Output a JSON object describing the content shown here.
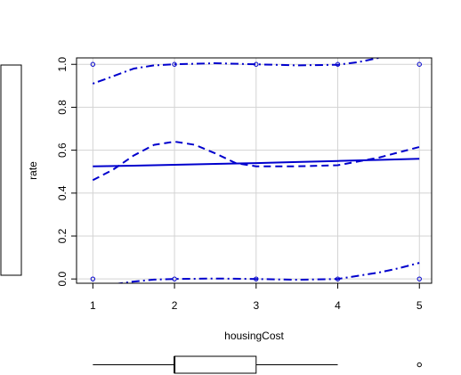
{
  "chart_data": {
    "type": "line",
    "title": "",
    "xlabel": "housingCost",
    "ylabel": "rate",
    "xlim": [
      0.8,
      5.15
    ],
    "ylim": [
      -0.02,
      1.03
    ],
    "x_ticks": [
      1,
      2,
      3,
      4,
      5
    ],
    "y_ticks": [
      0.0,
      0.2,
      0.4,
      0.6,
      0.8,
      1.0
    ],
    "x_tick_labels": [
      "1",
      "2",
      "3",
      "4",
      "5"
    ],
    "y_tick_labels": [
      "0.0",
      "0.2",
      "0.4",
      "0.6",
      "0.8",
      "1.0"
    ],
    "grid": true,
    "colors": {
      "series": "#0000cd",
      "grid": "#d3d3d3",
      "box": "#000000"
    },
    "series": [
      {
        "style": "solid",
        "x": [
          1,
          1.5,
          2,
          2.5,
          3,
          3.5,
          4,
          4.5,
          5
        ],
        "y": [
          0.525,
          0.528,
          0.532,
          0.536,
          0.54,
          0.545,
          0.55,
          0.555,
          0.56
        ]
      },
      {
        "style": "dashed",
        "x": [
          1,
          1.25,
          1.5,
          1.75,
          2,
          2.25,
          2.5,
          2.75,
          3,
          3.5,
          4,
          4.5,
          5
        ],
        "y": [
          0.46,
          0.51,
          0.575,
          0.625,
          0.64,
          0.625,
          0.585,
          0.54,
          0.525,
          0.525,
          0.53,
          0.565,
          0.615
        ]
      },
      {
        "style": "dotdash",
        "x": [
          1,
          1.25,
          1.5,
          1.75,
          2,
          2.5,
          3,
          3.5,
          4,
          4.25,
          4.5,
          4.75,
          5
        ],
        "y": [
          0.91,
          0.945,
          0.98,
          0.995,
          1.0,
          1.005,
          1.0,
          0.995,
          0.998,
          1.01,
          1.03,
          1.06,
          1.09
        ]
      },
      {
        "style": "dotdash",
        "x": [
          1,
          1.25,
          1.5,
          1.75,
          2,
          2.5,
          3,
          3.5,
          4,
          4.25,
          4.5,
          4.75,
          5
        ],
        "y": [
          -0.04,
          -0.025,
          -0.012,
          -0.003,
          0.0,
          0.002,
          0.0,
          -0.004,
          0.0,
          0.015,
          0.03,
          0.05,
          0.075
        ]
      }
    ],
    "observations": {
      "x": [
        1,
        2,
        3,
        4,
        5,
        1,
        2,
        3,
        4,
        5
      ],
      "y": [
        1,
        1,
        1,
        1,
        1,
        0,
        0,
        0,
        0,
        0
      ]
    },
    "x_boxplot": {
      "whisker_low": 1,
      "q1": 2,
      "median": 2,
      "q3": 3,
      "whisker_high": 4,
      "outliers": [
        5
      ]
    }
  }
}
